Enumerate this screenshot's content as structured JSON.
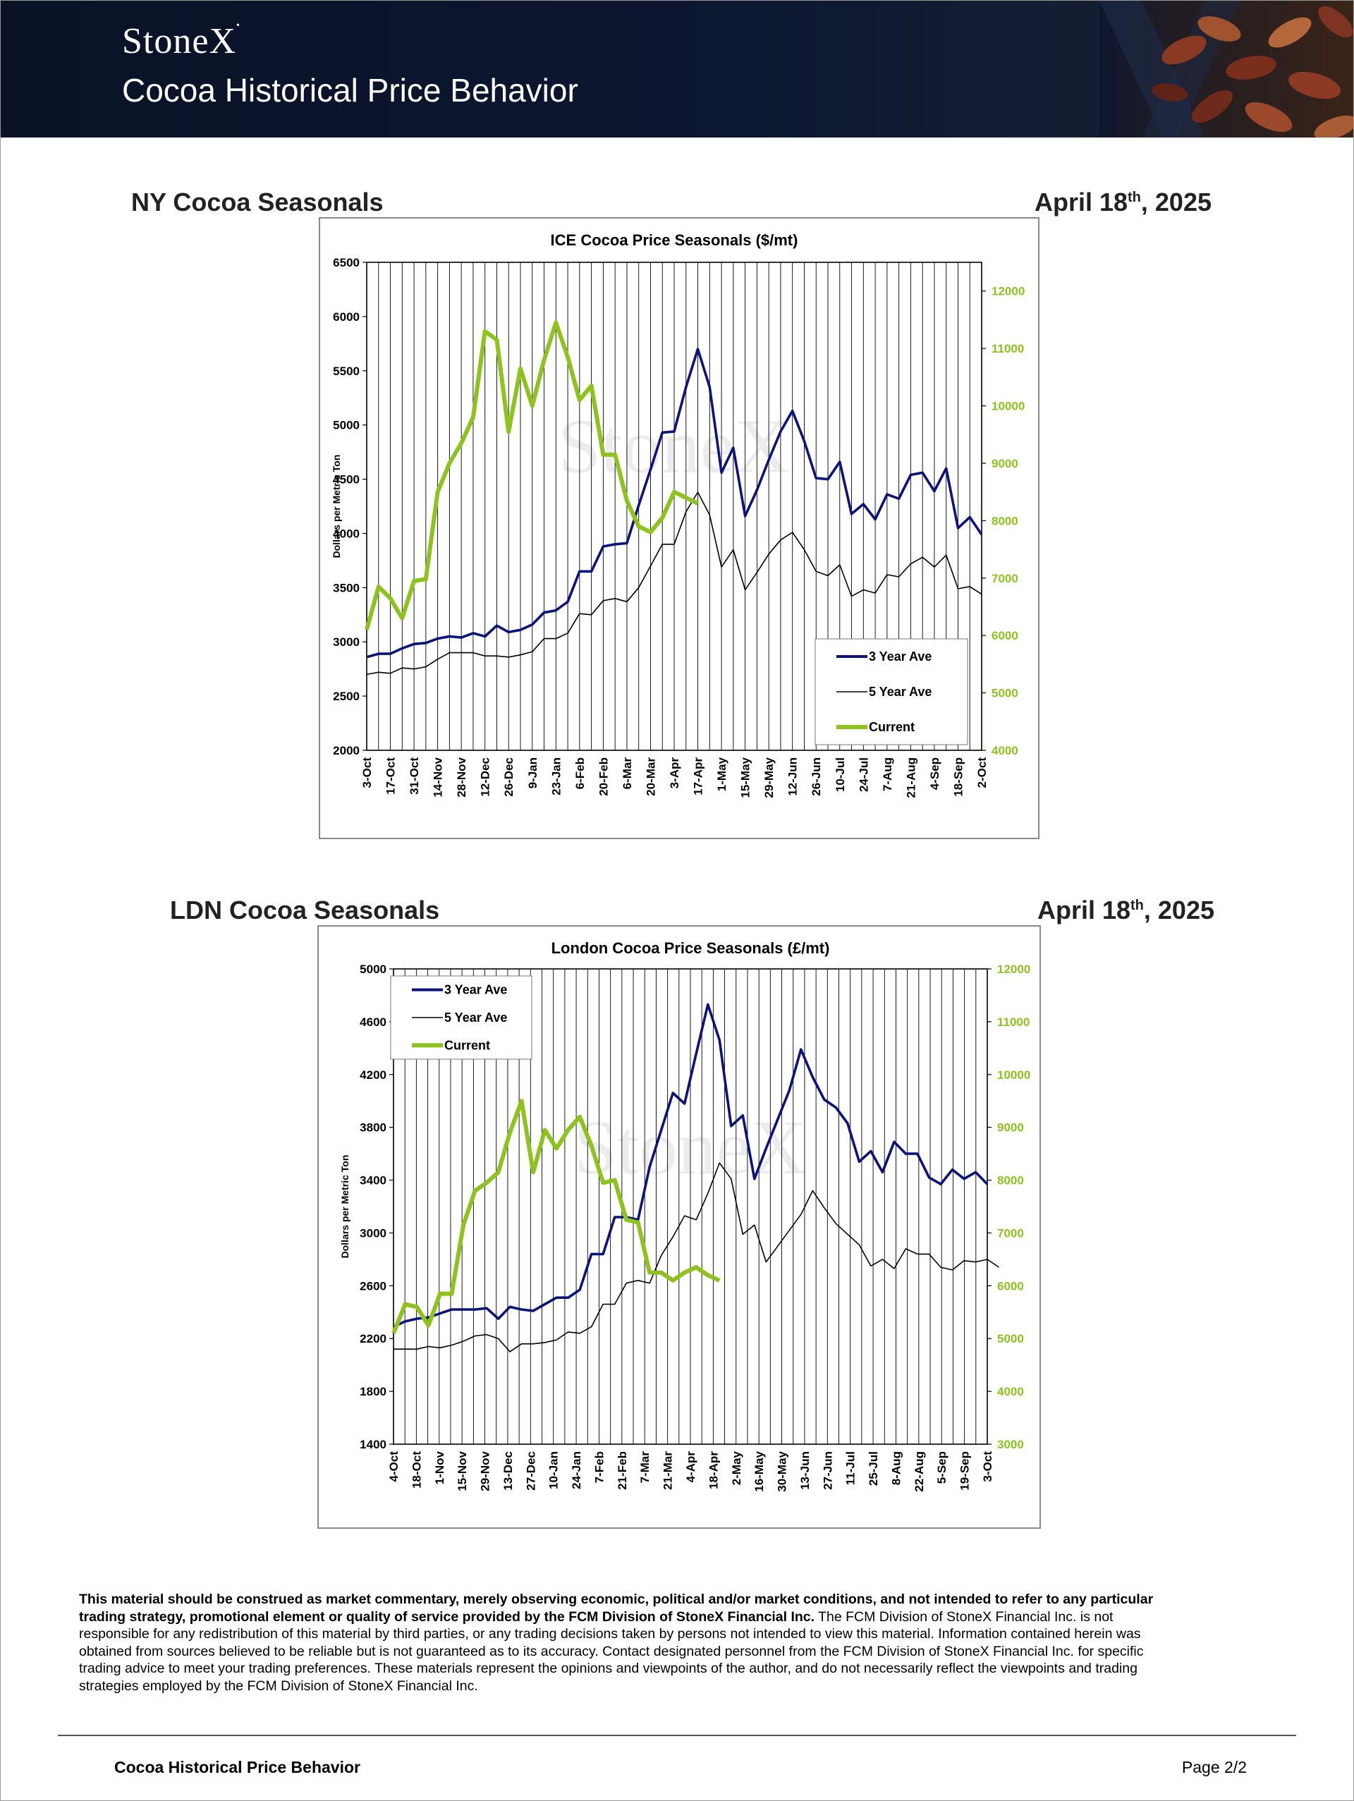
{
  "header": {
    "brand": "StoneX",
    "title": "Cocoa Historical Price Behavior"
  },
  "sections": [
    {
      "title": "NY Cocoa Seasonals",
      "date_main": "April 18",
      "date_sup": "th",
      "date_tail": ", 2025"
    },
    {
      "title": "LDN Cocoa Seasonals",
      "date_main": "April 18",
      "date_sup": "th",
      "date_tail": ", 2025"
    }
  ],
  "colors": {
    "three_year": "#0a137a",
    "five_year": "#000000",
    "current": "#8dc21f",
    "right_axis": "#8dc21f",
    "header_bg": "#0c1731"
  },
  "chart_data": [
    {
      "type": "line",
      "title": "ICE Cocoa Price Seasonals ($/mt)",
      "ylabel": "Dollars per Metric Ton",
      "watermark": "StoneX",
      "ylim": [
        2000,
        6500
      ],
      "y2lim": [
        4000,
        12500
      ],
      "yticks": [
        "6500",
        "6000",
        "5500",
        "5000",
        "4500",
        "4000",
        "3500",
        "3000",
        "2500",
        "2000"
      ],
      "y2ticks": [
        "12000",
        "11000",
        "10000",
        "9000",
        "8000",
        "7000",
        "6000",
        "5000",
        "4000"
      ],
      "xlabels": [
        "3-Oct",
        "17-Oct",
        "31-Oct",
        "14-Nov",
        "28-Nov",
        "12-Dec",
        "26-Dec",
        "9-Jan",
        "23-Jan",
        "6-Feb",
        "20-Feb",
        "6-Mar",
        "20-Mar",
        "3-Apr",
        "17-Apr",
        "1-May",
        "15-May",
        "29-May",
        "12-Jun",
        "26-Jun",
        "10-Jul",
        "24-Jul",
        "7-Aug",
        "21-Aug",
        "4-Sep",
        "18-Sep",
        "2-Oct"
      ],
      "legend": [
        "3 Year Ave",
        "5 Year Ave",
        "Current"
      ],
      "legend_position": "center-right",
      "grid": "vertical",
      "series": [
        {
          "name": "3 Year Ave",
          "axis": "left",
          "values": [
            2860,
            2890,
            2890,
            2940,
            2980,
            2990,
            3030,
            3050,
            3040,
            3080,
            3050,
            3150,
            3090,
            3110,
            3160,
            3270,
            3290,
            3370,
            3650,
            3650,
            3880,
            3900,
            3910,
            4260,
            4590,
            4930,
            4940,
            5350,
            5700,
            5350,
            4560,
            4790,
            4160,
            4400,
            4680,
            4940,
            5130,
            4850,
            4510,
            4500,
            4660,
            4180,
            4270,
            4130,
            4360,
            4320,
            4540,
            4560,
            4390,
            4600,
            4050,
            4150,
            3990
          ]
        },
        {
          "name": "5 Year Ave",
          "axis": "left",
          "values": [
            2700,
            2720,
            2710,
            2760,
            2750,
            2770,
            2840,
            2900,
            2900,
            2900,
            2870,
            2870,
            2860,
            2880,
            2910,
            3030,
            3030,
            3080,
            3260,
            3250,
            3380,
            3400,
            3370,
            3500,
            3700,
            3900,
            3900,
            4200,
            4380,
            4170,
            3690,
            3850,
            3480,
            3640,
            3810,
            3940,
            4010,
            3850,
            3650,
            3610,
            3710,
            3420,
            3480,
            3450,
            3620,
            3600,
            3720,
            3780,
            3690,
            3800,
            3490,
            3510,
            3440
          ]
        },
        {
          "name": "Current",
          "axis": "right",
          "values": [
            6100,
            6850,
            6650,
            6300,
            6950,
            6980,
            8500,
            9000,
            9350,
            9800,
            11300,
            11150,
            9550,
            10650,
            10000,
            10800,
            11450,
            10850,
            10100,
            10350,
            9150,
            9150,
            8350,
            7900,
            7800,
            8050,
            8500,
            8400,
            8300
          ]
        }
      ]
    },
    {
      "type": "line",
      "title": "London Cocoa Price Seasonals (£/mt)",
      "ylabel": "Dollars per Metric Ton",
      "watermark": "StoneX",
      "ylim": [
        1400,
        5000
      ],
      "y2lim": [
        3000,
        12000
      ],
      "yticks": [
        "5000",
        "4600",
        "4200",
        "3800",
        "3400",
        "3000",
        "2600",
        "2200",
        "1800",
        "1400"
      ],
      "y2ticks": [
        "12000",
        "11000",
        "10000",
        "9000",
        "8000",
        "7000",
        "6000",
        "5000",
        "4000",
        "3000"
      ],
      "xlabels": [
        "4-Oct",
        "18-Oct",
        "1-Nov",
        "15-Nov",
        "29-Nov",
        "13-Dec",
        "27-Dec",
        "10-Jan",
        "24-Jan",
        "7-Feb",
        "21-Feb",
        "7-Mar",
        "21-Mar",
        "4-Apr",
        "18-Apr",
        "2-May",
        "16-May",
        "30-May",
        "13-Jun",
        "27-Jun",
        "11-Jul",
        "25-Jul",
        "8-Aug",
        "22-Aug",
        "5-Sep",
        "19-Sep",
        "3-Oct"
      ],
      "legend": [
        "3 Year Ave",
        "5 Year Ave",
        "Current"
      ],
      "legend_position": "top-left",
      "grid": "vertical",
      "series": [
        {
          "name": "3 Year Ave",
          "axis": "left",
          "values": [
            2290,
            2330,
            2350,
            2360,
            2390,
            2420,
            2420,
            2420,
            2430,
            2350,
            2440,
            2420,
            2410,
            2460,
            2510,
            2510,
            2570,
            2840,
            2840,
            3120,
            3120,
            3100,
            3500,
            3780,
            4060,
            3980,
            4360,
            4730,
            4460,
            3810,
            3890,
            3410,
            3640,
            3860,
            4080,
            4390,
            4180,
            4010,
            3950,
            3830,
            3540,
            3620,
            3460,
            3690,
            3600,
            3600,
            3420,
            3370,
            3480,
            3410,
            3460,
            3370
          ]
        },
        {
          "name": "5 Year Ave",
          "axis": "left",
          "values": [
            2120,
            2120,
            2120,
            2140,
            2130,
            2150,
            2180,
            2220,
            2230,
            2200,
            2100,
            2160,
            2160,
            2170,
            2190,
            2250,
            2240,
            2290,
            2460,
            2460,
            2620,
            2640,
            2620,
            2830,
            2970,
            3130,
            3100,
            3300,
            3530,
            3410,
            2990,
            3060,
            2780,
            2900,
            3020,
            3140,
            3320,
            3190,
            3070,
            2990,
            2910,
            2750,
            2800,
            2730,
            2880,
            2840,
            2840,
            2740,
            2720,
            2790,
            2780,
            2800,
            2740
          ]
        },
        {
          "name": "Current",
          "axis": "right",
          "values": [
            5100,
            5650,
            5600,
            5250,
            5850,
            5850,
            7150,
            7800,
            7950,
            8150,
            8900,
            9500,
            8150,
            8950,
            8600,
            8950,
            9200,
            8650,
            7950,
            8000,
            7250,
            7200,
            6250,
            6250,
            6100,
            6250,
            6350,
            6200,
            6100
          ]
        }
      ]
    }
  ],
  "disclaimer": {
    "bold": "This material should be construed as market commentary, merely observing economic, political and/or market conditions, and not intended to refer to any particular trading strategy, promotional element or quality of service provided by the FCM Division of StoneX Financial Inc.",
    "body": " The FCM Division of StoneX Financial Inc. is not responsible for any redistribution of this material by third parties, or any trading decisions taken by persons not intended to view this material. Information contained herein was obtained from sources believed to be reliable but is not guaranteed as to its accuracy. Contact designated personnel from the FCM Division of StoneX Financial Inc. for specific trading advice to meet your trading preferences. These materials represent the opinions and viewpoints of the author, and do not necessarily reflect the viewpoints and trading strategies employed by the FCM Division of StoneX Financial Inc."
  },
  "footer": {
    "left": "Cocoa Historical Price Behavior",
    "right": "Page 2/2"
  }
}
